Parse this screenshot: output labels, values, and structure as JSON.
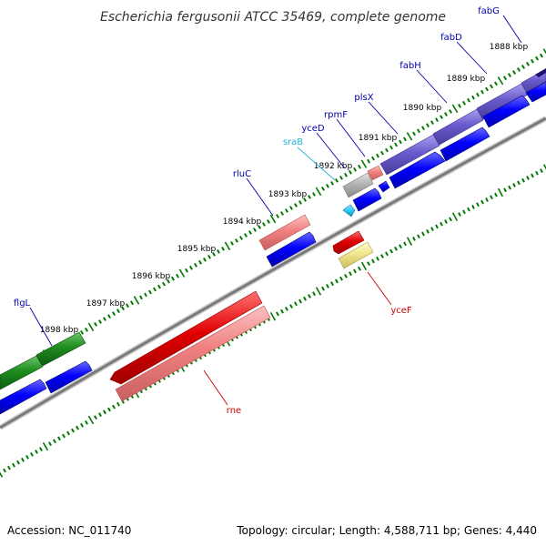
{
  "title": "Escherichia fergusonii ATCC 35469, complete genome",
  "footer": {
    "accession": "Accession: NC_011740",
    "summary": "Topology: circular; Length: 4,588,711 bp; Genes: 4,440"
  },
  "kbp_labels": [
    "1888 kbp",
    "1889 kbp",
    "1890 kbp",
    "1891 kbp",
    "1892 kbp",
    "1893 kbp",
    "1894 kbp",
    "1895 kbp",
    "1896 kbp",
    "1897 kbp",
    "1898 kbp"
  ],
  "gene_labels": {
    "fabG": "fabG",
    "fabD": "fabD",
    "fabH": "fabH",
    "plsX": "plsX",
    "rpmF": "rpmF",
    "yceD": "yceD",
    "sraB": "sraB",
    "rluC": "rluC",
    "flgL": "flgL",
    "yceF": "yceF",
    "rne": "rne"
  },
  "colors": {
    "backbone": "#808080",
    "tick": "#007a00",
    "blue_label": "#0000aa",
    "red_label": "#cc0000",
    "cyan_label": "#22b5d6",
    "forward_cds": "#0000ff",
    "purple_gene": "#6a5acd",
    "green_gene": "#1e8c1e",
    "red_gene": "#e00000",
    "pink_gene": "#f08080",
    "gray_gene": "#b3b3b3",
    "yellow_gene": "#f0e68c",
    "cyan_gene": "#33ccff"
  }
}
